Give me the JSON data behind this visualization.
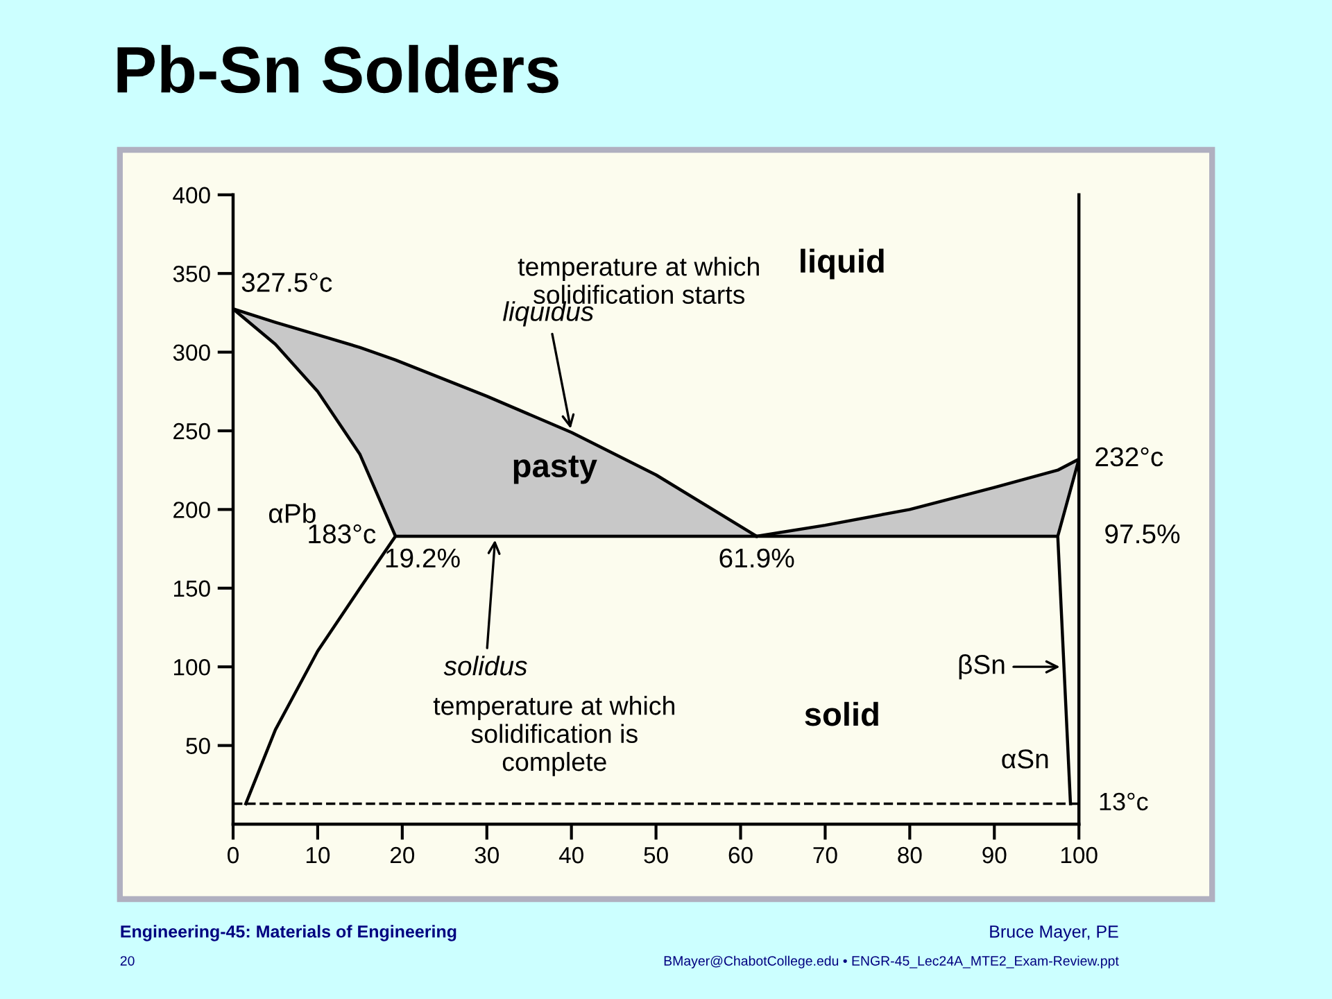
{
  "chart_data": {
    "type": "line",
    "title": "Pb-Sn Solders",
    "xlim": [
      0,
      100
    ],
    "xticks": [
      0,
      10,
      20,
      30,
      40,
      50,
      60,
      70,
      80,
      90,
      100
    ],
    "ylim": [
      0,
      400
    ],
    "yticks": [
      50,
      100,
      150,
      200,
      250,
      300,
      350,
      400
    ],
    "grid": false,
    "marker": "none",
    "line_style": "solid",
    "series": [
      {
        "color": "#000000",
        "x": [
          0,
          5,
          10,
          15,
          19.2,
          30,
          40,
          50,
          61.9
        ],
        "values": [
          327.5,
          319,
          311,
          303,
          295,
          272,
          249,
          222,
          183
        ]
      },
      {
        "color": "#000000",
        "x": [
          61.9,
          70,
          80,
          90,
          97.5,
          100,
          97.5,
          99
        ],
        "values": [
          183,
          190,
          200,
          214,
          225,
          232,
          183,
          13
        ]
      },
      {
        "color": "#000000",
        "x": [
          0,
          5,
          10,
          15,
          19.2
        ],
        "values": [
          327.5,
          305,
          275,
          235,
          183
        ]
      },
      {
        "color": "#000000",
        "x": [
          19.2,
          97.5
        ],
        "values": [
          183,
          183
        ]
      },
      {
        "color": "#000000",
        "x": [
          19.2,
          15,
          10,
          5,
          1.5
        ],
        "values": [
          183,
          150,
          110,
          60,
          13
        ]
      }
    ],
    "ref_lines": [
      {
        "axis": "y",
        "value": 13,
        "label": "13°c",
        "line_style": "dashed",
        "color": "#000000"
      }
    ],
    "annotations": [
      {
        "text": "327.5°c",
        "x": 0,
        "y": 327.5
      },
      {
        "text": "183°c",
        "x": 19.2,
        "y": 183
      },
      {
        "text": "19.2%",
        "x": 19.2,
        "y": 183
      },
      {
        "text": "61.9%",
        "x": 61.9,
        "y": 183
      },
      {
        "text": "97.5%",
        "x": 97.5,
        "y": 183
      },
      {
        "text": "232°c",
        "x": 100,
        "y": 232
      },
      {
        "text": "liquidus",
        "x": 40,
        "y": 249
      },
      {
        "text": "solidus",
        "x": 31,
        "y": 183
      },
      {
        "text": "βSn",
        "x": 98.2,
        "y": 100
      },
      {
        "text": "αSn",
        "x": 98.8,
        "y": 40
      },
      "αPb",
      "liquid",
      "pasty",
      "solid",
      "temperature at which\nsolidification starts",
      "temperature at which\nsolidification is\ncomplete",
      "Engineering-45: Materials of Engineering",
      "Bruce Mayer, PE",
      "20",
      "BMayer@ChabotCollege.edu • ENGR-45_Lec24A_MTE2_Exam-Review.ppt"
    ]
  }
}
